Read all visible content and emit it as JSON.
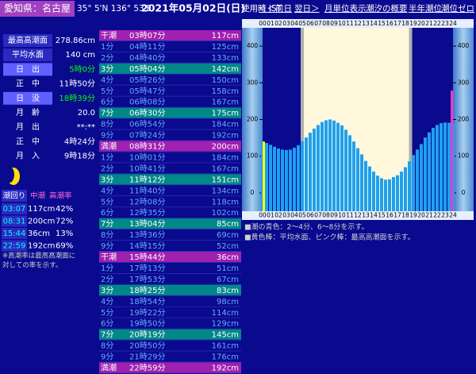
{
  "header": {
    "location": "愛知県：名古屋",
    "coords": "35° 5'N 136° 53'E",
    "date": "2021年05月02日(日)",
    "timezone": "使用時 JST",
    "links": [
      "＜＜前日",
      "翌日＞",
      "月単位表示",
      "潮汐の概要",
      "半年潮位",
      "潮位ゼロ"
    ]
  },
  "info": {
    "rows": [
      [
        "最高高潮面",
        "278.86cm"
      ],
      [
        "平均水面",
        "140 cm"
      ],
      [
        "日　出",
        "5時0分"
      ],
      [
        "正　中",
        "11時50分"
      ],
      [
        "日　没",
        "18時39分"
      ],
      [
        "月　齢",
        "20.0"
      ],
      [
        "月　出",
        "**:**"
      ],
      [
        "正　中",
        "4時24分"
      ],
      [
        "月　入",
        "9時18分"
      ]
    ]
  },
  "tide_summary": {
    "header": [
      "潮回り",
      "中潮",
      "高潮率"
    ],
    "rows": [
      [
        "03:07",
        "117cm",
        "42%"
      ],
      [
        "08:31",
        "200cm",
        "72%"
      ],
      [
        "15:44",
        "36cm",
        "13%"
      ],
      [
        "22:59",
        "192cm",
        "69%"
      ]
    ],
    "note": [
      "※高潮率は最高高潮面に",
      "対しての率を示す。"
    ]
  },
  "tide_table": {
    "rows": [
      [
        "干潮",
        "03時07分",
        "117cm"
      ],
      [
        "1分",
        "04時11分",
        "125cm"
      ],
      [
        "2分",
        "04時40分",
        "133cm"
      ],
      [
        "3分",
        "05時04分",
        "142cm"
      ],
      [
        "4分",
        "05時26分",
        "150cm"
      ],
      [
        "5分",
        "05時47分",
        "158cm"
      ],
      [
        "6分",
        "06時08分",
        "167cm"
      ],
      [
        "7分",
        "06時30分",
        "175cm"
      ],
      [
        "8分",
        "06時54分",
        "184cm"
      ],
      [
        "9分",
        "07時24分",
        "192cm"
      ],
      [
        "満潮",
        "08時31分",
        "200cm"
      ],
      [
        "1分",
        "10時01分",
        "184cm"
      ],
      [
        "2分",
        "10時41分",
        "167cm"
      ],
      [
        "3分",
        "11時12分",
        "151cm"
      ],
      [
        "4分",
        "11時40分",
        "134cm"
      ],
      [
        "5分",
        "12時08分",
        "118cm"
      ],
      [
        "6分",
        "12時35分",
        "102cm"
      ],
      [
        "7分",
        "13時04分",
        "85cm"
      ],
      [
        "8分",
        "13時36分",
        "69cm"
      ],
      [
        "9分",
        "14時15分",
        "52cm"
      ],
      [
        "干潮",
        "15時44分",
        "36cm"
      ],
      [
        "1分",
        "17時13分",
        "51cm"
      ],
      [
        "2分",
        "17時53分",
        "67cm"
      ],
      [
        "3分",
        "18時25分",
        "83cm"
      ],
      [
        "4分",
        "18時54分",
        "98cm"
      ],
      [
        "5分",
        "19時22分",
        "114cm"
      ],
      [
        "6分",
        "19時50分",
        "129cm"
      ],
      [
        "7分",
        "20時19分",
        "145cm"
      ],
      [
        "8分",
        "20時50分",
        "161cm"
      ],
      [
        "9分",
        "21時29分",
        "176cm"
      ],
      [
        "満潮",
        "22時59分",
        "192cm"
      ]
    ]
  },
  "chart_data": {
    "type": "bar",
    "color": "#1ea0f0",
    "x": [
      0,
      0.5,
      1,
      1.5,
      2,
      2.5,
      3,
      3.5,
      4,
      4.5,
      5,
      5.5,
      6,
      6.5,
      7,
      7.5,
      8,
      8.5,
      9,
      9.5,
      10,
      10.5,
      11,
      11.5,
      12,
      12.5,
      13,
      13.5,
      14,
      14.5,
      15,
      15.5,
      16,
      16.5,
      17,
      17.5,
      18,
      18.5,
      19,
      19.5,
      20,
      20.5,
      21,
      21.5,
      22,
      22.5,
      23,
      23.5,
      24
    ],
    "values": [
      140,
      136,
      131,
      126,
      121,
      118,
      117,
      118,
      123,
      130,
      141,
      151,
      164,
      175,
      185,
      193,
      198,
      200,
      197,
      191,
      184,
      172,
      157,
      140,
      122,
      105,
      87,
      72,
      58,
      47,
      40,
      36,
      37,
      43,
      48,
      58,
      70,
      86,
      103,
      118,
      133,
      151,
      165,
      177,
      185,
      190,
      192,
      191,
      188
    ],
    "xlim": [
      0,
      24
    ],
    "xticks": [
      {
        "value": 0,
        "label": "00"
      },
      {
        "value": 1,
        "label": "01"
      },
      {
        "value": 2,
        "label": "02"
      },
      {
        "value": 3,
        "label": "03"
      },
      {
        "value": 4,
        "label": "04"
      },
      {
        "value": 5,
        "label": "05"
      },
      {
        "value": 6,
        "label": "06"
      },
      {
        "value": 7,
        "label": "07"
      },
      {
        "value": 8,
        "label": "08"
      },
      {
        "value": 9,
        "label": "09"
      },
      10,
      11,
      12,
      13,
      14,
      15,
      16,
      17,
      18,
      19,
      20,
      21,
      22,
      23,
      24
    ],
    "ylim": [
      -50,
      450
    ],
    "yticks": [
      0,
      100,
      200,
      300,
      400
    ],
    "shaded_x": [
      5,
      18.65
    ],
    "shade_color": "#fff8dc",
    "night_color": "#0a0a8f",
    "mean_level": 140,
    "mean_color": "#ffff00",
    "highest_level": 278.86,
    "highest_color": "#ff33cc",
    "notes": [
      "■潮の青色：2～4分、6～8分を示す。",
      "■黄色棒：平均水面、ピンク棒：最高高潮面を示す。"
    ]
  }
}
